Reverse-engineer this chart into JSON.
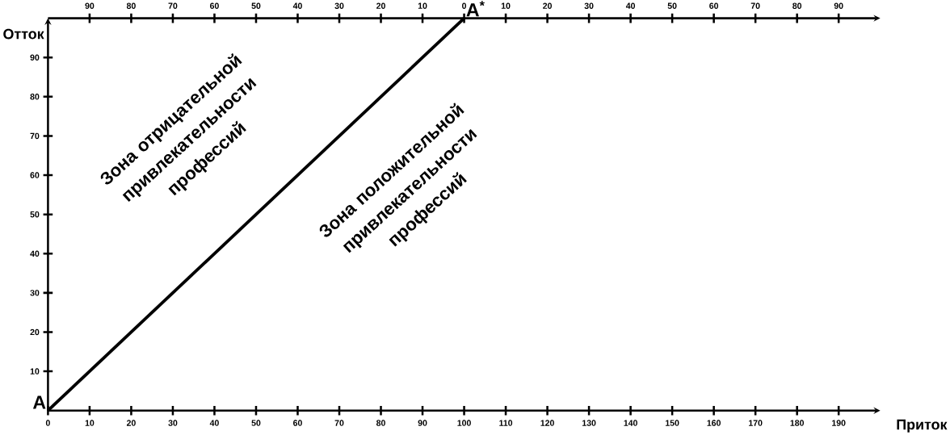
{
  "chart_data": {
    "type": "line",
    "xlabel": "Приток",
    "ylabel": "Отток",
    "x": [
      0,
      100
    ],
    "series": [
      {
        "color": "#000000",
        "values": [
          0,
          100
        ]
      }
    ],
    "xlim": [
      0,
      200
    ],
    "ylim": [
      0,
      100
    ],
    "xticks": [
      0,
      10,
      20,
      30,
      40,
      50,
      60,
      70,
      80,
      90,
      100,
      110,
      120,
      130,
      140,
      150,
      160,
      170,
      180,
      190
    ],
    "yticks": [
      10,
      20,
      30,
      40,
      50,
      60,
      70,
      80,
      90
    ],
    "x2lim": [
      -100,
      100
    ],
    "x2ticks": [
      {
        "value": -90,
        "label": "90"
      },
      {
        "value": -80,
        "label": "80"
      },
      {
        "value": -70,
        "label": "70"
      },
      {
        "value": -60,
        "label": "60"
      },
      {
        "value": -50,
        "label": "50"
      },
      {
        "value": -40,
        "label": "40"
      },
      {
        "value": -30,
        "label": "30"
      },
      {
        "value": -20,
        "label": "20"
      },
      {
        "value": -10,
        "label": "10"
      },
      0,
      10,
      20,
      30,
      40,
      50,
      60,
      70,
      80,
      90
    ],
    "annotations": [
      {
        "text": "A",
        "x": 0,
        "y": 0
      },
      {
        "text": "A$^{*}$",
        "x": 100,
        "y": 100
      },
      "Зона отрицательной привлекательности профессий",
      "Зона положительной привлекательности профессий"
    ]
  }
}
